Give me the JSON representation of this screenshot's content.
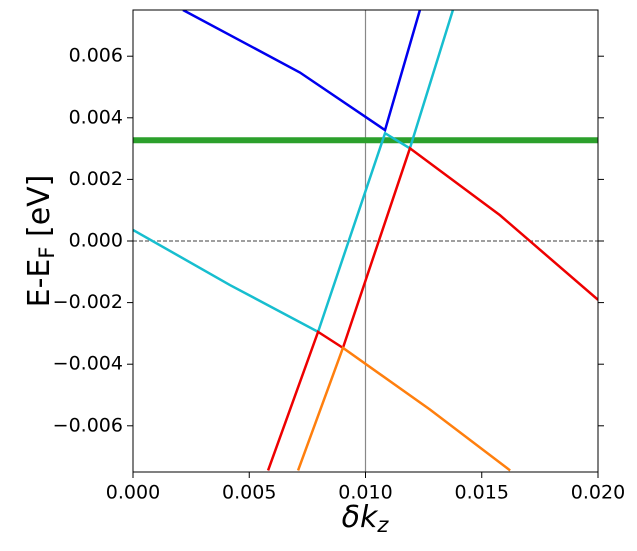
{
  "chart_data": {
    "type": "line",
    "xlabel": [
      "δk",
      "z"
    ],
    "ylabel": [
      "E-E",
      "F",
      " [eV]"
    ],
    "xlim": [
      0,
      0.02
    ],
    "ylim": [
      -0.0075,
      0.0075
    ],
    "xticks": [
      {
        "value": 0,
        "label": "0.000"
      },
      {
        "value": 0.005,
        "label": "0.005"
      },
      {
        "value": 0.01,
        "label": "0.010"
      },
      {
        "value": 0.015,
        "label": "0.015"
      },
      {
        "value": 0.02,
        "label": "0.020"
      }
    ],
    "yticks": [
      {
        "value": -0.006,
        "label": "−0.006"
      },
      {
        "value": -0.004,
        "label": "−0.004"
      },
      {
        "value": -0.002,
        "label": "−0.002"
      },
      {
        "value": 0,
        "label": "0.000"
      },
      {
        "value": 0.002,
        "label": "0.002"
      },
      {
        "value": 0.004,
        "label": "0.004"
      },
      {
        "value": 0.006,
        "label": "0.006"
      }
    ],
    "series": [
      {
        "color": "#0000ee",
        "x": [
          0.00215,
          0.00718,
          0.01084,
          0.01234
        ],
        "values": [
          0.0075,
          0.00547,
          0.0036,
          0.0075
        ]
      },
      {
        "color": "#17becf",
        "x": [
          0,
          0.00417,
          0.00796,
          0.01084,
          0.01191,
          0.01376
        ],
        "values": [
          0.00036,
          -0.00143,
          -0.00295,
          0.0035,
          0.00301,
          0.0075
        ]
      },
      {
        "color": "#ee0000",
        "x": [
          0.00581,
          0.00796,
          0.00903,
          0.01191,
          0.01578,
          0.02
        ],
        "values": [
          -0.00745,
          -0.00295,
          -0.00347,
          0.00301,
          0.00084,
          -0.00191
        ]
      },
      {
        "color": "#ff7f0e",
        "x": [
          0.0071,
          0.00903,
          0.01277,
          0.01622
        ],
        "values": [
          -0.00745,
          -0.00347,
          -0.00547,
          -0.00745
        ]
      }
    ],
    "hlines": [
      {
        "y": 0.00327,
        "color": "#2ca02c",
        "width": 6
      },
      {
        "y": 0,
        "color": "#000000",
        "width": 0.7,
        "dash": true
      }
    ],
    "vlines": [
      {
        "x": 0.01,
        "color": "#888888",
        "width": 1.2
      }
    ]
  }
}
